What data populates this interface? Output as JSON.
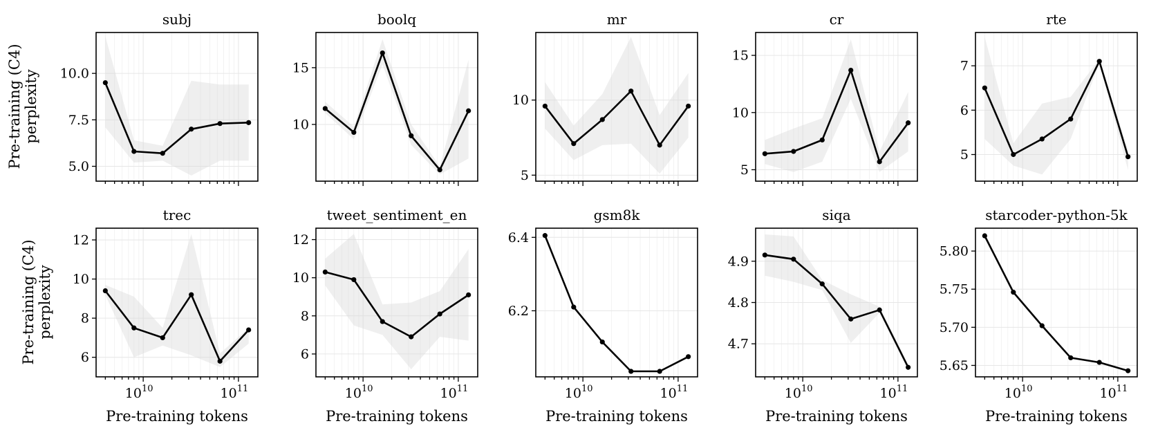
{
  "x_axis": {
    "label": "Pre-training tokens",
    "x": [
      4000000000.0,
      8000000000.0,
      16000000000.0,
      32000000000.0,
      64000000000.0,
      128000000000.0
    ],
    "xlim": [
      3200000000.0,
      160000000000.0
    ],
    "tick_base": "10",
    "tick_exps": [
      "10",
      "11"
    ]
  },
  "y_axis_label": [
    "Pre-training (C4)",
    "perplexity"
  ],
  "chart_data": [
    {
      "type": "line",
      "title": "subj",
      "values": [
        9.5,
        5.8,
        5.7,
        7.0,
        7.3,
        7.35
      ],
      "lower": [
        7.1,
        5.2,
        5.3,
        4.5,
        5.3,
        5.3
      ],
      "upper": [
        12.0,
        6.4,
        6.1,
        9.6,
        9.4,
        9.4
      ],
      "ylim": [
        4.2,
        12.2
      ],
      "yticks": [
        5.0,
        7.5,
        10.0
      ],
      "ytick_labels": [
        "5.0",
        "7.5",
        "10.0"
      ]
    },
    {
      "type": "line",
      "title": "boolq",
      "values": [
        11.4,
        9.3,
        16.3,
        9.0,
        6.0,
        11.2
      ],
      "lower": [
        11.0,
        8.7,
        15.3,
        8.2,
        5.6,
        7.0
      ],
      "upper": [
        12.0,
        9.8,
        17.5,
        10.0,
        6.3,
        15.7
      ],
      "ylim": [
        5.0,
        18.1
      ],
      "yticks": [
        10,
        15
      ],
      "ytick_labels": [
        "10",
        "15"
      ]
    },
    {
      "type": "line",
      "title": "mr",
      "values": [
        9.6,
        7.1,
        8.7,
        10.6,
        7.0,
        9.6
      ],
      "lower": [
        8.1,
        6.0,
        7.0,
        7.1,
        5.1,
        7.5
      ],
      "upper": [
        11.2,
        8.3,
        10.4,
        14.2,
        9.0,
        11.8
      ],
      "ylim": [
        4.6,
        14.5
      ],
      "yticks": [
        5,
        10
      ],
      "ytick_labels": [
        "5",
        "10"
      ]
    },
    {
      "type": "line",
      "title": "cr",
      "values": [
        6.4,
        6.6,
        7.6,
        13.7,
        5.7,
        9.1
      ],
      "lower": [
        5.5,
        4.8,
        5.7,
        11.2,
        4.8,
        6.6
      ],
      "upper": [
        7.6,
        8.6,
        9.5,
        16.4,
        6.6,
        11.8
      ],
      "ylim": [
        4.0,
        17.0
      ],
      "yticks": [
        5,
        10,
        15
      ],
      "ytick_labels": [
        "5",
        "10",
        "15"
      ]
    },
    {
      "type": "line",
      "title": "rte",
      "values": [
        6.5,
        5.0,
        5.35,
        5.8,
        7.1,
        4.95
      ],
      "lower": [
        5.35,
        4.75,
        4.55,
        5.35,
        7.05,
        4.65
      ],
      "upper": [
        7.65,
        5.25,
        6.15,
        6.3,
        7.15,
        5.1
      ],
      "ylim": [
        4.4,
        7.75
      ],
      "yticks": [
        5,
        6,
        7
      ],
      "ytick_labels": [
        "5",
        "6",
        "7"
      ]
    },
    {
      "type": "line",
      "title": "trec",
      "values": [
        9.4,
        7.5,
        7.0,
        9.2,
        5.8,
        7.4
      ],
      "lower": [
        9.2,
        6.0,
        6.6,
        6.1,
        5.5,
        6.7
      ],
      "upper": [
        9.7,
        9.1,
        7.5,
        12.3,
        6.2,
        7.5
      ],
      "ylim": [
        5.0,
        12.6
      ],
      "yticks": [
        6,
        8,
        10,
        12
      ],
      "ytick_labels": [
        "6",
        "8",
        "10",
        "12"
      ]
    },
    {
      "type": "line",
      "title": "tweet_sentiment_en",
      "values": [
        10.3,
        9.9,
        7.7,
        6.9,
        8.1,
        9.1
      ],
      "lower": [
        9.6,
        7.5,
        7.0,
        5.2,
        6.9,
        6.7
      ],
      "upper": [
        11.0,
        12.3,
        8.6,
        8.7,
        9.3,
        11.5
      ],
      "ylim": [
        4.8,
        12.6
      ],
      "yticks": [
        6,
        8,
        10,
        12
      ],
      "ytick_labels": [
        "6",
        "8",
        "10",
        "12"
      ]
    },
    {
      "type": "line",
      "title": "gsm8k",
      "values": [
        6.405,
        6.21,
        6.115,
        6.035,
        6.035,
        6.075
      ],
      "lower": [
        6.402,
        6.208,
        6.113,
        6.033,
        6.033,
        6.072
      ],
      "upper": [
        6.408,
        6.213,
        6.117,
        6.037,
        6.037,
        6.078
      ],
      "ylim": [
        6.02,
        6.425
      ],
      "yticks": [
        6.2,
        6.4
      ],
      "ytick_labels": [
        "6.2",
        "6.4"
      ]
    },
    {
      "type": "line",
      "title": "siqa",
      "values": [
        4.915,
        4.905,
        4.845,
        4.76,
        4.782,
        4.643
      ],
      "lower": [
        4.865,
        4.85,
        4.83,
        4.702,
        4.775,
        4.635
      ],
      "upper": [
        4.965,
        4.96,
        4.855,
        4.82,
        4.79,
        4.65
      ],
      "ylim": [
        4.62,
        4.98
      ],
      "yticks": [
        4.7,
        4.8,
        4.9
      ],
      "ytick_labels": [
        "4.7",
        "4.8",
        "4.9"
      ]
    },
    {
      "type": "line",
      "title": "starcoder-python-5k",
      "values": [
        5.82,
        5.746,
        5.702,
        5.66,
        5.654,
        5.643
      ],
      "lower": [
        5.819,
        5.745,
        5.701,
        5.659,
        5.653,
        5.642
      ],
      "upper": [
        5.821,
        5.747,
        5.703,
        5.661,
        5.655,
        5.644
      ],
      "ylim": [
        5.635,
        5.83
      ],
      "yticks": [
        5.65,
        5.7,
        5.75,
        5.8
      ],
      "ytick_labels": [
        "5.65",
        "5.70",
        "5.75",
        "5.80"
      ]
    }
  ]
}
